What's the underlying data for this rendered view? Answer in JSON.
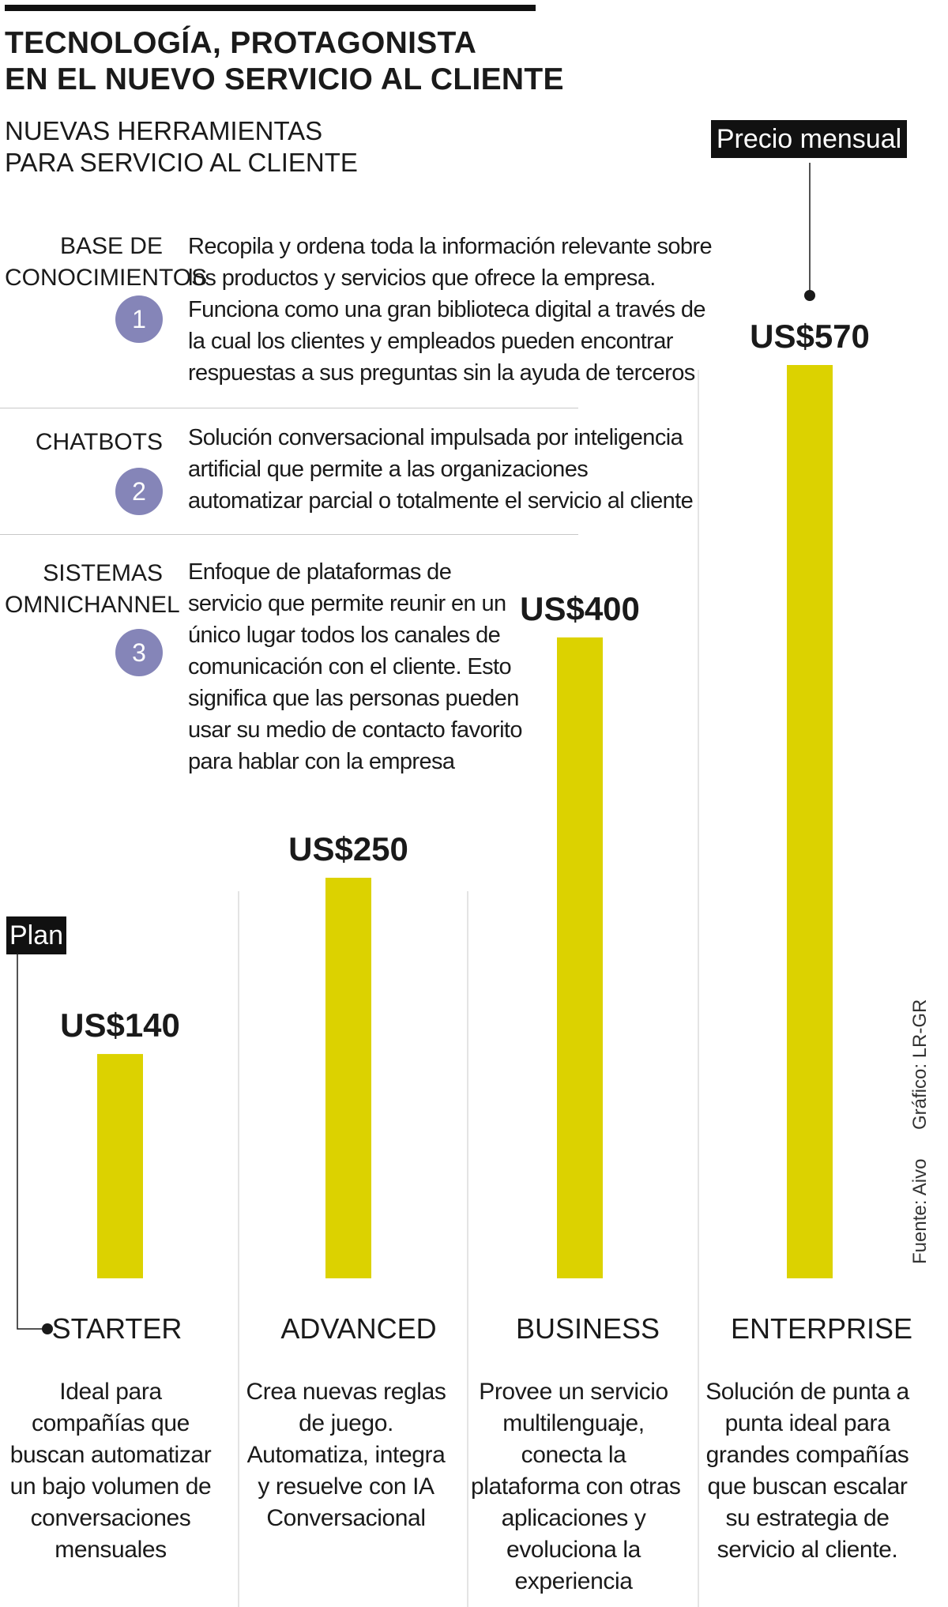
{
  "header": {
    "title_lines": [
      "TECNOLOGÍA, PROTAGONISTA",
      "EN EL NUEVO SERVICIO AL CLIENTE"
    ],
    "subtitle_lines": [
      "NUEVAS HERRAMIENTAS",
      "PARA SERVICIO AL CLIENTE"
    ]
  },
  "solutions": [
    {
      "number": "1",
      "name_lines": [
        "BASE DE",
        "CONOCIMIENTOS"
      ],
      "description_lines": [
        "Recopila y ordena toda la información relevante sobre",
        "los productos y servicios que ofrece la empresa.",
        "Funciona como una gran biblioteca digital a través de",
        "la cual los clientes y empleados pueden encontrar",
        "respuestas a sus preguntas sin la ayuda de terceros"
      ]
    },
    {
      "number": "2",
      "name_lines": [
        "CHATBOTS"
      ],
      "description_lines": [
        "Solución conversacional impulsada por inteligencia",
        "artificial que permite a las organizaciones",
        "automatizar parcial o totalmente el servicio al cliente"
      ]
    },
    {
      "number": "3",
      "name_lines": [
        "SISTEMAS",
        "OMNICHANNEL"
      ],
      "description_lines": [
        "Enfoque de plataformas de",
        "servicio que permite reunir en un",
        "único lugar todos los canales de",
        "comunicación con el cliente. Esto",
        "significa que las personas pueden",
        "usar su medio de contacto favorito",
        "para hablar con la empresa"
      ]
    }
  ],
  "chart_data": {
    "type": "bar",
    "title": "",
    "xlabel": "Plan",
    "ylabel": "Precio mensual",
    "currency_prefix": "US$",
    "categories": [
      "STARTER",
      "ADVANCED",
      "BUSINESS",
      "ENTERPRISE"
    ],
    "values": [
      140,
      250,
      400,
      570
    ],
    "value_labels": [
      "US$140",
      "US$250",
      "US$400",
      "US$570"
    ],
    "ylim": [
      0,
      570
    ],
    "bar_color": "#dcd200",
    "grid": false,
    "category_descriptions": [
      [
        "Ideal para",
        "compañías que",
        "buscan automatizar",
        "un bajo volumen de",
        "conversaciones",
        "mensuales"
      ],
      [
        "Crea nuevas reglas",
        "de juego.",
        "Automatiza, integra",
        "y resuelve con IA",
        "Conversacional"
      ],
      [
        "Provee un servicio",
        "multilenguaje,",
        "conecta la",
        "plataforma con otras",
        "aplicaciones y",
        "evoluciona la",
        "experiencia"
      ],
      [
        "Solución de punta a",
        "punta ideal para",
        "grandes compañías",
        "que buscan escalar",
        "su estrategia de",
        "servicio al cliente."
      ]
    ]
  },
  "footer": {
    "source": "Fuente: Aivo",
    "credit": "Gráfico: LR-GR"
  },
  "colors": {
    "bar": "#dcd200",
    "number_badge": "#8585b8",
    "label_box": "#111111"
  }
}
